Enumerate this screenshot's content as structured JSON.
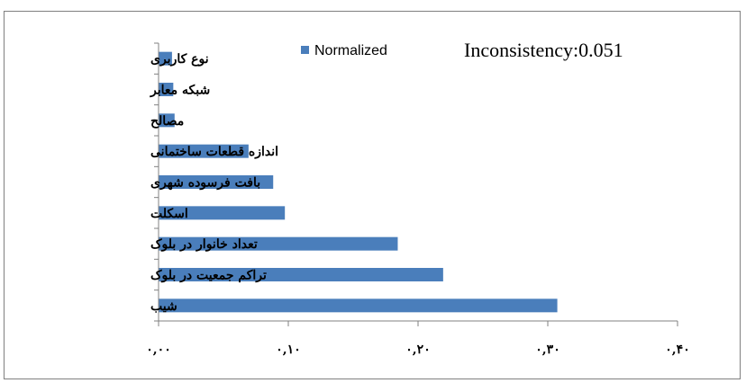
{
  "chart_data": {
    "type": "bar",
    "orientation": "horizontal",
    "categories": [
      "نوع کاربری",
      "شبکه معابر",
      "مصالح",
      "اندازه قطعات ساختمانی",
      "بافت فرسوده شهری",
      "اسکلت",
      "تعداد خانوار در بلوک",
      "تراکم جمعیت در بلوک",
      "شیب"
    ],
    "series": [
      {
        "name": "Normalized",
        "color": "#4a7ebb",
        "values": [
          0.01,
          0.011,
          0.012,
          0.069,
          0.088,
          0.097,
          0.184,
          0.219,
          0.307
        ]
      }
    ],
    "xlim": [
      0,
      0.4
    ],
    "xticks": [
      0,
      0.1,
      0.2,
      0.3,
      0.4
    ],
    "xtick_labels": [
      "۰,۰۰",
      "۰,۱۰",
      "۰,۲۰",
      "۰,۳۰",
      "۰,۴۰"
    ],
    "legend": {
      "label": "Normalized",
      "position": "top"
    },
    "annotation": "Inconsistency:0.051",
    "grid": false,
    "title": "",
    "xlabel": "",
    "ylabel": ""
  }
}
